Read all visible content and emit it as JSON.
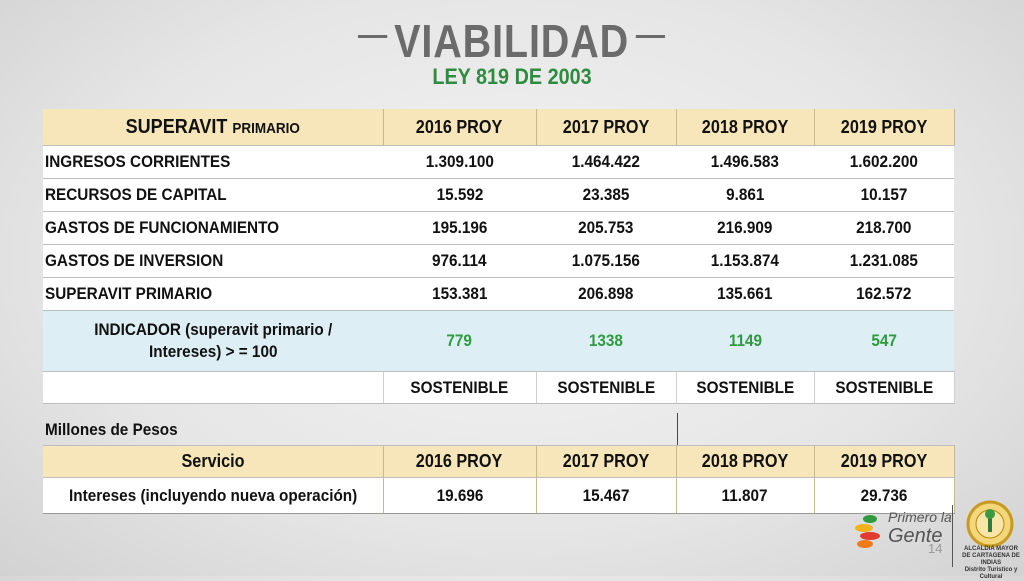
{
  "header": {
    "title": "VIABILIDAD",
    "subtitle": "LEY 819 DE 2003"
  },
  "main_table": {
    "header_first_big": "SUPERAVIT",
    "header_first_small": "PRIMARIO",
    "columns": [
      "2016 PROY",
      "2017 PROY",
      "2018 PROY",
      "2019 PROY"
    ],
    "rows": [
      {
        "label": "INGRESOS CORRIENTES",
        "values": [
          "1.309.100",
          "1.464.422",
          "1.496.583",
          "1.602.200"
        ]
      },
      {
        "label": "RECURSOS DE CAPITAL",
        "values": [
          "15.592",
          "23.385",
          "9.861",
          "10.157"
        ]
      },
      {
        "label": "GASTOS DE FUNCIONAMIENTO",
        "values": [
          "195.196",
          "205.753",
          "216.909",
          "218.700"
        ]
      },
      {
        "label": "GASTOS DE INVERSION",
        "values": [
          "976.114",
          "1.075.156",
          "1.153.874",
          "1.231.085"
        ]
      },
      {
        "label": "SUPERAVIT PRIMARIO",
        "values": [
          "153.381",
          "206.898",
          "135.661",
          "162.572"
        ]
      }
    ],
    "indicator": {
      "label_line1": "INDICADOR (superavit primario /",
      "label_line2": "Intereses) > = 100",
      "values": [
        "779",
        "1338",
        "1149",
        "547"
      ]
    },
    "status": [
      "SOSTENIBLE",
      "SOSTENIBLE",
      "SOSTENIBLE",
      "SOSTENIBLE"
    ]
  },
  "units_note": "Millones de Pesos",
  "service_table": {
    "header_label": "Servicio",
    "columns": [
      "2016 PROY",
      "2017 PROY",
      "2018 PROY",
      "2019 PROY"
    ],
    "row": {
      "label": "Intereses (incluyendo nueva operación)",
      "values": [
        "19.696",
        "15.467",
        "11.807",
        "29.736"
      ]
    }
  },
  "footer": {
    "logo_line1": "Primero la",
    "logo_line2": "Gente",
    "page_number": "14",
    "seal_caption_1": "ALCALDIA MAYOR",
    "seal_caption_2": "DE CARTAGENA DE INDIAS",
    "seal_caption_3": "Distrito Turistico y Cultural"
  },
  "colors": {
    "header_fill": "#f6e6b9",
    "indicator_fill": "#ddeef5",
    "green_text": "#2e8b3f",
    "title_gray": "#6b6b6b"
  }
}
